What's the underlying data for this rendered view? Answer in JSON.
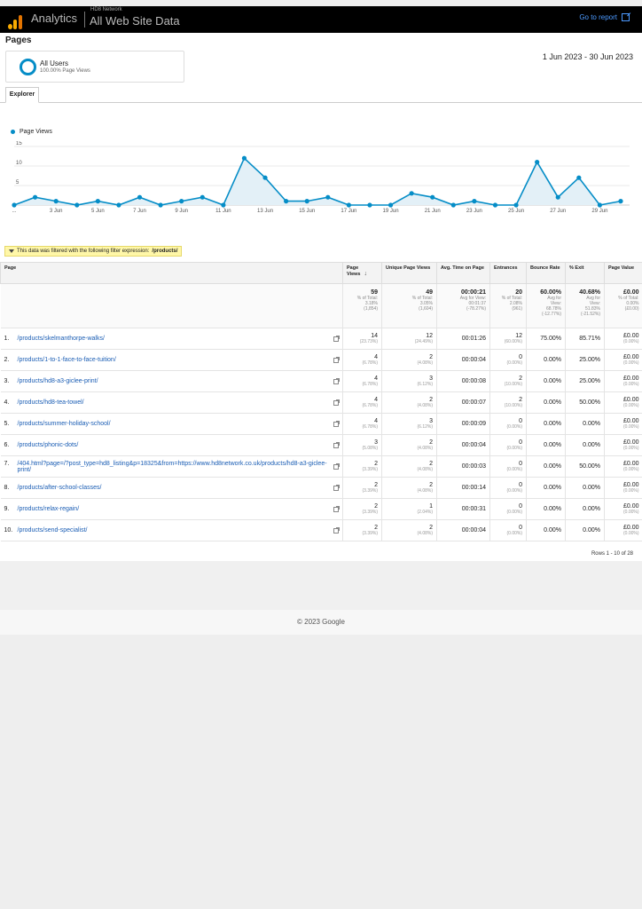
{
  "header": {
    "app_name": "Analytics",
    "account_name": "HD8 Network",
    "property_name": "All Web Site Data",
    "go_to_report": "Go to report",
    "go_to_report_icon": "external-link-icon"
  },
  "report": {
    "title": "Pages",
    "segment": {
      "name": "All Users",
      "detail": "100.00% Page Views"
    },
    "date_range": "1 Jun 2023 - 30 Jun 2023",
    "tab": "Explorer",
    "legend": "Page Views",
    "filter_text": "This data was filtered with the following filter expression:",
    "filter_expr": "/products/",
    "rows_info": "Rows 1 - 10 of 28"
  },
  "chart_data": {
    "type": "line",
    "series": [
      {
        "name": "Page Views",
        "values": [
          0,
          2,
          1,
          0,
          1,
          0,
          2,
          0,
          1,
          2,
          0,
          12,
          7,
          1,
          1,
          2,
          0,
          0,
          0,
          3,
          2,
          0,
          1,
          0,
          0,
          11,
          2,
          7,
          0,
          1
        ]
      }
    ],
    "x_tick_labels": [
      "...",
      "3 Jun",
      "5 Jun",
      "7 Jun",
      "9 Jun",
      "11 Jun",
      "13 Jun",
      "15 Jun",
      "17 Jun",
      "19 Jun",
      "21 Jun",
      "23 Jun",
      "25 Jun",
      "27 Jun",
      "29 Jun"
    ],
    "y_tick_labels": [
      "5",
      "10",
      "15"
    ],
    "ylim": [
      0,
      15
    ],
    "color": "#058dc7"
  },
  "table": {
    "columns": [
      "Page",
      "Page Views",
      "Unique Page Views",
      "Avg. Time on Page",
      "Entrances",
      "Bounce Rate",
      "% Exit",
      "Page Value"
    ],
    "totals": [
      {
        "main": "59",
        "sub": [
          "% of Total:",
          "3.18%",
          "(1,854)"
        ]
      },
      {
        "main": "49",
        "sub": [
          "% of Total:",
          "3.05%",
          "(1,604)"
        ]
      },
      {
        "main": "00:00:21",
        "sub": [
          "Avg for View:",
          "00:01:37",
          "(-78.27%)"
        ]
      },
      {
        "main": "20",
        "sub": [
          "% of Total:",
          "2.08%",
          "(961)"
        ]
      },
      {
        "main": "60.00%",
        "sub": [
          "Avg for",
          "View:",
          "68.78%",
          "(-12.77%)"
        ]
      },
      {
        "main": "40.68%",
        "sub": [
          "Avg for",
          "View:",
          "51.83%",
          "(-21.52%)"
        ]
      },
      {
        "main": "£0.00",
        "sub": [
          "% of Total:",
          "0.00%",
          "(£0.00)"
        ]
      }
    ],
    "rows": [
      {
        "num": "1.",
        "page": "/products/skelmanthorpe-walks/",
        "pv": "14",
        "pv_pct": "(23.73%)",
        "upv": "12",
        "upv_pct": "(24.49%)",
        "time": "00:01:26",
        "ent": "12",
        "ent_pct": "(60.00%)",
        "bounce": "75.00%",
        "exit": "85.71%",
        "val": "£0.00",
        "val_pct": "(0.00%)"
      },
      {
        "num": "2.",
        "page": "/products/1-to-1-face-to-face-tuition/",
        "pv": "4",
        "pv_pct": "(6.78%)",
        "upv": "2",
        "upv_pct": "(4.08%)",
        "time": "00:00:04",
        "ent": "0",
        "ent_pct": "(0.00%)",
        "bounce": "0.00%",
        "exit": "25.00%",
        "val": "£0.00",
        "val_pct": "(0.00%)"
      },
      {
        "num": "3.",
        "page": "/products/hd8-a3-giclee-print/",
        "pv": "4",
        "pv_pct": "(6.78%)",
        "upv": "3",
        "upv_pct": "(6.12%)",
        "time": "00:00:08",
        "ent": "2",
        "ent_pct": "(10.00%)",
        "bounce": "0.00%",
        "exit": "25.00%",
        "val": "£0.00",
        "val_pct": "(0.00%)"
      },
      {
        "num": "4.",
        "page": "/products/hd8-tea-towel/",
        "pv": "4",
        "pv_pct": "(6.78%)",
        "upv": "2",
        "upv_pct": "(4.08%)",
        "time": "00:00:07",
        "ent": "2",
        "ent_pct": "(10.00%)",
        "bounce": "0.00%",
        "exit": "50.00%",
        "val": "£0.00",
        "val_pct": "(0.00%)"
      },
      {
        "num": "5.",
        "page": "/products/summer-holiday-school/",
        "pv": "4",
        "pv_pct": "(6.78%)",
        "upv": "3",
        "upv_pct": "(6.12%)",
        "time": "00:00:09",
        "ent": "0",
        "ent_pct": "(0.00%)",
        "bounce": "0.00%",
        "exit": "0.00%",
        "val": "£0.00",
        "val_pct": "(0.00%)"
      },
      {
        "num": "6.",
        "page": "/products/phonic-dots/",
        "pv": "3",
        "pv_pct": "(5.08%)",
        "upv": "2",
        "upv_pct": "(4.08%)",
        "time": "00:00:04",
        "ent": "0",
        "ent_pct": "(0.00%)",
        "bounce": "0.00%",
        "exit": "0.00%",
        "val": "£0.00",
        "val_pct": "(0.00%)"
      },
      {
        "num": "7.",
        "page": "/404.html?page=/?post_type=hd8_listing&p=18325&from=https://www.hd8network.co.uk/products/hd8-a3-giclee-print/",
        "pv": "2",
        "pv_pct": "(3.39%)",
        "upv": "2",
        "upv_pct": "(4.08%)",
        "time": "00:00:03",
        "ent": "0",
        "ent_pct": "(0.00%)",
        "bounce": "0.00%",
        "exit": "50.00%",
        "val": "£0.00",
        "val_pct": "(0.00%)"
      },
      {
        "num": "8.",
        "page": "/products/after-school-classes/",
        "pv": "2",
        "pv_pct": "(3.39%)",
        "upv": "2",
        "upv_pct": "(4.08%)",
        "time": "00:00:14",
        "ent": "0",
        "ent_pct": "(0.00%)",
        "bounce": "0.00%",
        "exit": "0.00%",
        "val": "£0.00",
        "val_pct": "(0.00%)"
      },
      {
        "num": "9.",
        "page": "/products/relax-regain/",
        "pv": "2",
        "pv_pct": "(3.39%)",
        "upv": "1",
        "upv_pct": "(2.04%)",
        "time": "00:00:31",
        "ent": "0",
        "ent_pct": "(0.00%)",
        "bounce": "0.00%",
        "exit": "0.00%",
        "val": "£0.00",
        "val_pct": "(0.00%)"
      },
      {
        "num": "10.",
        "page": "/products/send-specialist/",
        "pv": "2",
        "pv_pct": "(3.39%)",
        "upv": "2",
        "upv_pct": "(4.08%)",
        "time": "00:00:04",
        "ent": "0",
        "ent_pct": "(0.00%)",
        "bounce": "0.00%",
        "exit": "0.00%",
        "val": "£0.00",
        "val_pct": "(0.00%)"
      }
    ]
  },
  "footer": {
    "copyright": "© 2023 Google"
  }
}
